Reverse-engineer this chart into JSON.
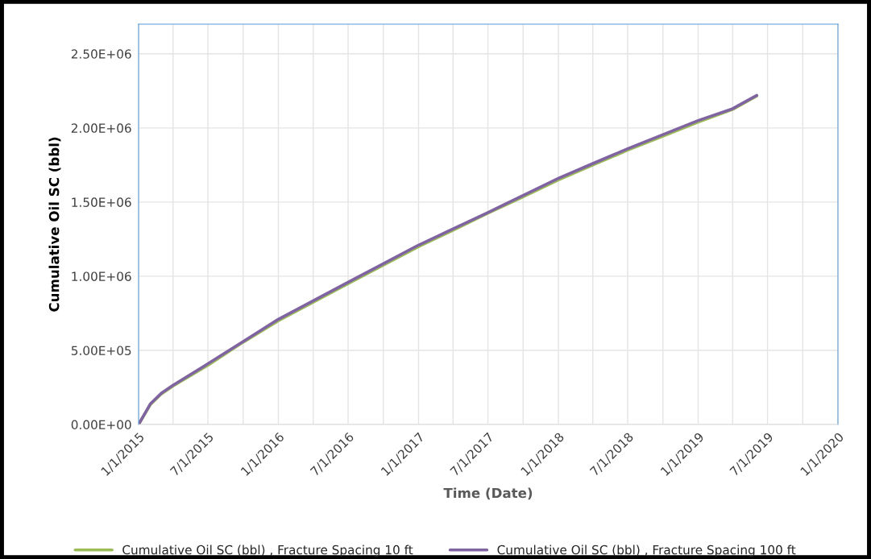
{
  "chart_data": {
    "type": "line",
    "xlabel": "Time (Date)",
    "ylabel": "Cumulative Oil SC (bbl)",
    "x": [
      "2015-01-01",
      "2015-02-01",
      "2015-03-01",
      "2015-04-01",
      "2015-07-01",
      "2015-10-01",
      "2016-01-01",
      "2016-04-01",
      "2016-07-01",
      "2016-10-01",
      "2017-01-01",
      "2017-04-01",
      "2017-07-01",
      "2017-10-01",
      "2018-01-01",
      "2018-04-01",
      "2018-07-01",
      "2018-10-01",
      "2019-01-01",
      "2019-04-01",
      "2019-06-03"
    ],
    "series": [
      {
        "name": "Cumulative Oil SC (bbl) , Fracture Spacing 10 ft",
        "color": "#9bbb59",
        "values": [
          0,
          135000,
          205000,
          260000,
          400000,
          555000,
          700000,
          825000,
          950000,
          1075000,
          1200000,
          1310000,
          1425000,
          1535000,
          1650000,
          1750000,
          1850000,
          1945000,
          2040000,
          2125000,
          2215000
        ]
      },
      {
        "name": "Cumulative Oil SC (bbl) , Fracture Spacing 100 ft",
        "color": "#8064a2",
        "values": [
          0,
          140000,
          210000,
          265000,
          410000,
          560000,
          710000,
          835000,
          960000,
          1085000,
          1210000,
          1320000,
          1430000,
          1545000,
          1660000,
          1760000,
          1860000,
          1955000,
          2050000,
          2130000,
          2220000
        ]
      }
    ],
    "xlim": [
      "2015-01-01",
      "2020-01-01"
    ],
    "xticks": [
      {
        "value": "2015-01-01",
        "label": "1/1/2015"
      },
      {
        "value": "2015-04-01",
        "label": null
      },
      {
        "value": "2015-07-01",
        "label": "7/1/2015"
      },
      {
        "value": "2015-10-01",
        "label": null
      },
      {
        "value": "2016-01-01",
        "label": "1/1/2016"
      },
      {
        "value": "2016-04-01",
        "label": null
      },
      {
        "value": "2016-07-01",
        "label": "7/1/2016"
      },
      {
        "value": "2016-10-01",
        "label": null
      },
      {
        "value": "2017-01-01",
        "label": "1/1/2017"
      },
      {
        "value": "2017-04-01",
        "label": null
      },
      {
        "value": "2017-07-01",
        "label": "7/1/2017"
      },
      {
        "value": "2017-10-01",
        "label": null
      },
      {
        "value": "2018-01-01",
        "label": "1/1/2018"
      },
      {
        "value": "2018-04-01",
        "label": null
      },
      {
        "value": "2018-07-01",
        "label": "7/1/2018"
      },
      {
        "value": "2018-10-01",
        "label": null
      },
      {
        "value": "2019-01-01",
        "label": "1/1/2019"
      },
      {
        "value": "2019-04-01",
        "label": null
      },
      {
        "value": "2019-07-01",
        "label": "7/1/2019"
      },
      {
        "value": "2019-10-01",
        "label": null
      },
      {
        "value": "2020-01-01",
        "label": "1/1/2020"
      }
    ],
    "ylim": [
      0,
      2700000
    ],
    "yticks": [
      {
        "value": 0,
        "label": "0.00E+00"
      },
      {
        "value": 500000,
        "label": "5.00E+05"
      },
      {
        "value": 1000000,
        "label": "1.00E+06"
      },
      {
        "value": 1500000,
        "label": "1.50E+06"
      },
      {
        "value": 2000000,
        "label": "2.00E+06"
      },
      {
        "value": 2500000,
        "label": "2.50E+06"
      }
    ],
    "grid": true,
    "legend": "bottom",
    "marker": "none",
    "line_style": "solid"
  }
}
